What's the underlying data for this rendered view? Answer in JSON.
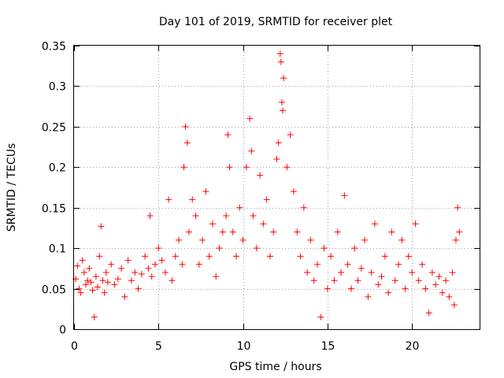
{
  "chart_data": {
    "type": "scatter",
    "title": "Day 101 of 2019, SRMTID for receiver plet",
    "xlabel": "GPS time / hours",
    "ylabel": "SRMTID / TECUs",
    "xlim": [
      0,
      24
    ],
    "ylim": [
      0,
      0.35
    ],
    "xticks": [
      0,
      5,
      10,
      15,
      20
    ],
    "xtick_labels": [
      "0",
      "5",
      "10",
      "15",
      "20"
    ],
    "yticks": [
      0,
      0.05,
      0.1,
      0.15,
      0.2,
      0.25,
      0.3,
      0.35
    ],
    "ytick_labels": [
      "0",
      "0.05",
      "0.1",
      "0.15",
      "0.2",
      "0.25",
      "0.3",
      "0.35"
    ],
    "grid": true,
    "marker": "+",
    "color": "#ff0000",
    "series": [
      {
        "name": "SRMTID",
        "points": [
          [
            0.1,
            0.062
          ],
          [
            0.2,
            0.078
          ],
          [
            0.3,
            0.05
          ],
          [
            0.4,
            0.045
          ],
          [
            0.5,
            0.085
          ],
          [
            0.6,
            0.07
          ],
          [
            0.7,
            0.055
          ],
          [
            0.8,
            0.06
          ],
          [
            0.9,
            0.075
          ],
          [
            1.0,
            0.058
          ],
          [
            1.1,
            0.048
          ],
          [
            1.2,
            0.015
          ],
          [
            1.3,
            0.065
          ],
          [
            1.4,
            0.052
          ],
          [
            1.5,
            0.09
          ],
          [
            1.6,
            0.127
          ],
          [
            1.7,
            0.06
          ],
          [
            1.8,
            0.045
          ],
          [
            1.9,
            0.07
          ],
          [
            2.0,
            0.058
          ],
          [
            2.2,
            0.08
          ],
          [
            2.4,
            0.055
          ],
          [
            2.6,
            0.062
          ],
          [
            2.8,
            0.075
          ],
          [
            3.0,
            0.04
          ],
          [
            3.2,
            0.085
          ],
          [
            3.4,
            0.06
          ],
          [
            3.6,
            0.07
          ],
          [
            3.8,
            0.05
          ],
          [
            4.0,
            0.068
          ],
          [
            4.2,
            0.09
          ],
          [
            4.4,
            0.075
          ],
          [
            4.5,
            0.14
          ],
          [
            4.6,
            0.065
          ],
          [
            4.8,
            0.08
          ],
          [
            5.0,
            0.1
          ],
          [
            5.2,
            0.085
          ],
          [
            5.4,
            0.07
          ],
          [
            5.6,
            0.16
          ],
          [
            5.8,
            0.06
          ],
          [
            6.0,
            0.09
          ],
          [
            6.2,
            0.11
          ],
          [
            6.4,
            0.08
          ],
          [
            6.5,
            0.2
          ],
          [
            6.6,
            0.25
          ],
          [
            6.7,
            0.23
          ],
          [
            6.8,
            0.12
          ],
          [
            7.0,
            0.16
          ],
          [
            7.2,
            0.14
          ],
          [
            7.4,
            0.08
          ],
          [
            7.6,
            0.11
          ],
          [
            7.8,
            0.17
          ],
          [
            8.0,
            0.09
          ],
          [
            8.2,
            0.13
          ],
          [
            8.4,
            0.065
          ],
          [
            8.6,
            0.1
          ],
          [
            8.8,
            0.12
          ],
          [
            9.0,
            0.14
          ],
          [
            9.1,
            0.24
          ],
          [
            9.2,
            0.2
          ],
          [
            9.4,
            0.12
          ],
          [
            9.6,
            0.09
          ],
          [
            9.8,
            0.15
          ],
          [
            10.0,
            0.11
          ],
          [
            10.2,
            0.2
          ],
          [
            10.4,
            0.26
          ],
          [
            10.5,
            0.22
          ],
          [
            10.6,
            0.14
          ],
          [
            10.8,
            0.1
          ],
          [
            11.0,
            0.19
          ],
          [
            11.2,
            0.13
          ],
          [
            11.4,
            0.16
          ],
          [
            11.6,
            0.09
          ],
          [
            11.8,
            0.12
          ],
          [
            12.0,
            0.21
          ],
          [
            12.1,
            0.23
          ],
          [
            12.2,
            0.34
          ],
          [
            12.25,
            0.33
          ],
          [
            12.3,
            0.28
          ],
          [
            12.35,
            0.27
          ],
          [
            12.4,
            0.31
          ],
          [
            12.6,
            0.2
          ],
          [
            12.8,
            0.24
          ],
          [
            13.0,
            0.17
          ],
          [
            13.2,
            0.12
          ],
          [
            13.4,
            0.09
          ],
          [
            13.6,
            0.15
          ],
          [
            13.8,
            0.07
          ],
          [
            14.0,
            0.11
          ],
          [
            14.2,
            0.06
          ],
          [
            14.4,
            0.08
          ],
          [
            14.6,
            0.015
          ],
          [
            14.8,
            0.1
          ],
          [
            15.0,
            0.05
          ],
          [
            15.2,
            0.09
          ],
          [
            15.4,
            0.06
          ],
          [
            15.6,
            0.12
          ],
          [
            15.8,
            0.07
          ],
          [
            16.0,
            0.165
          ],
          [
            16.2,
            0.08
          ],
          [
            16.4,
            0.05
          ],
          [
            16.6,
            0.1
          ],
          [
            16.8,
            0.06
          ],
          [
            17.0,
            0.075
          ],
          [
            17.2,
            0.11
          ],
          [
            17.4,
            0.04
          ],
          [
            17.6,
            0.07
          ],
          [
            17.8,
            0.13
          ],
          [
            18.0,
            0.055
          ],
          [
            18.2,
            0.065
          ],
          [
            18.4,
            0.09
          ],
          [
            18.6,
            0.045
          ],
          [
            18.8,
            0.12
          ],
          [
            19.0,
            0.06
          ],
          [
            19.2,
            0.08
          ],
          [
            19.4,
            0.11
          ],
          [
            19.6,
            0.05
          ],
          [
            19.8,
            0.09
          ],
          [
            20.0,
            0.07
          ],
          [
            20.2,
            0.13
          ],
          [
            20.4,
            0.06
          ],
          [
            20.6,
            0.08
          ],
          [
            20.8,
            0.05
          ],
          [
            21.0,
            0.02
          ],
          [
            21.2,
            0.07
          ],
          [
            21.4,
            0.055
          ],
          [
            21.6,
            0.065
          ],
          [
            21.8,
            0.045
          ],
          [
            22.0,
            0.06
          ],
          [
            22.2,
            0.04
          ],
          [
            22.4,
            0.07
          ],
          [
            22.5,
            0.03
          ],
          [
            22.6,
            0.11
          ],
          [
            22.7,
            0.15
          ],
          [
            22.8,
            0.12
          ]
        ]
      }
    ]
  }
}
